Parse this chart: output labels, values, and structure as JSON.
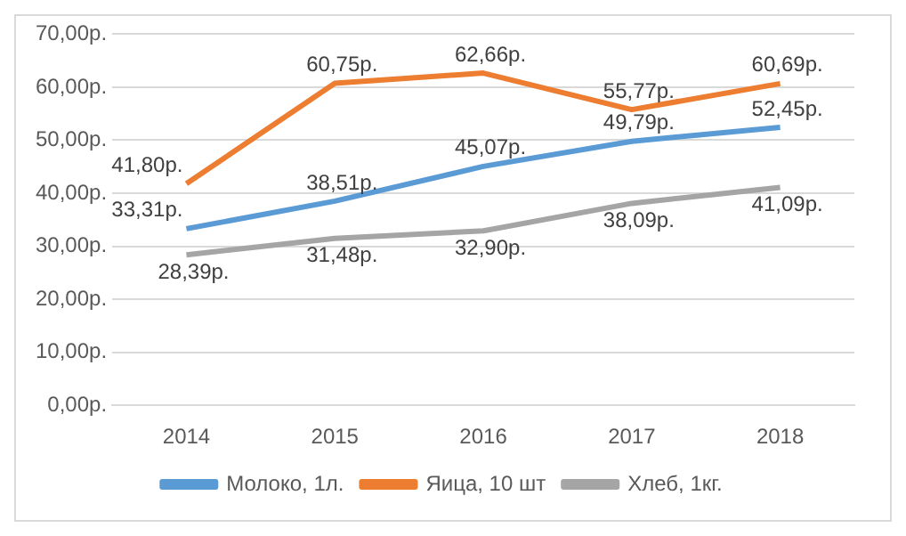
{
  "chart_data": {
    "type": "line",
    "categories": [
      "2014",
      "2015",
      "2016",
      "2017",
      "2018"
    ],
    "series": [
      {
        "name": "Молоко, 1л.",
        "color": "#5b9bd5",
        "values": [
          33.31,
          38.51,
          45.07,
          49.79,
          52.45
        ],
        "value_labels": [
          "33,31р.",
          "38,51р.",
          "45,07р.",
          "49,79р.",
          "52,45р."
        ]
      },
      {
        "name": "Яица, 10 шт",
        "color": "#ed7d31",
        "values": [
          41.8,
          60.75,
          62.66,
          55.77,
          60.69
        ],
        "value_labels": [
          "41,80р.",
          "60,75р.",
          "62,66р.",
          "55,77р.",
          "60,69р."
        ]
      },
      {
        "name": "Хлеб, 1кг.",
        "color": "#a5a5a5",
        "values": [
          28.39,
          31.48,
          32.9,
          38.09,
          41.09
        ],
        "value_labels": [
          "28,39р.",
          "31,48р.",
          "32,90р.",
          "38,09р.",
          "41,09р."
        ]
      }
    ],
    "ylim": [
      0,
      70
    ],
    "yticks": [
      {
        "value": 0,
        "label": "0,00р."
      },
      {
        "value": 10,
        "label": "10,00р."
      },
      {
        "value": 20,
        "label": "20,00р."
      },
      {
        "value": 30,
        "label": "30,00р."
      },
      {
        "value": 40,
        "label": "40,00р."
      },
      {
        "value": 50,
        "label": "50,00р."
      },
      {
        "value": 60,
        "label": "60,00р."
      },
      {
        "value": 70,
        "label": "70,00р."
      }
    ],
    "grid": "y",
    "legend": "bottom"
  }
}
